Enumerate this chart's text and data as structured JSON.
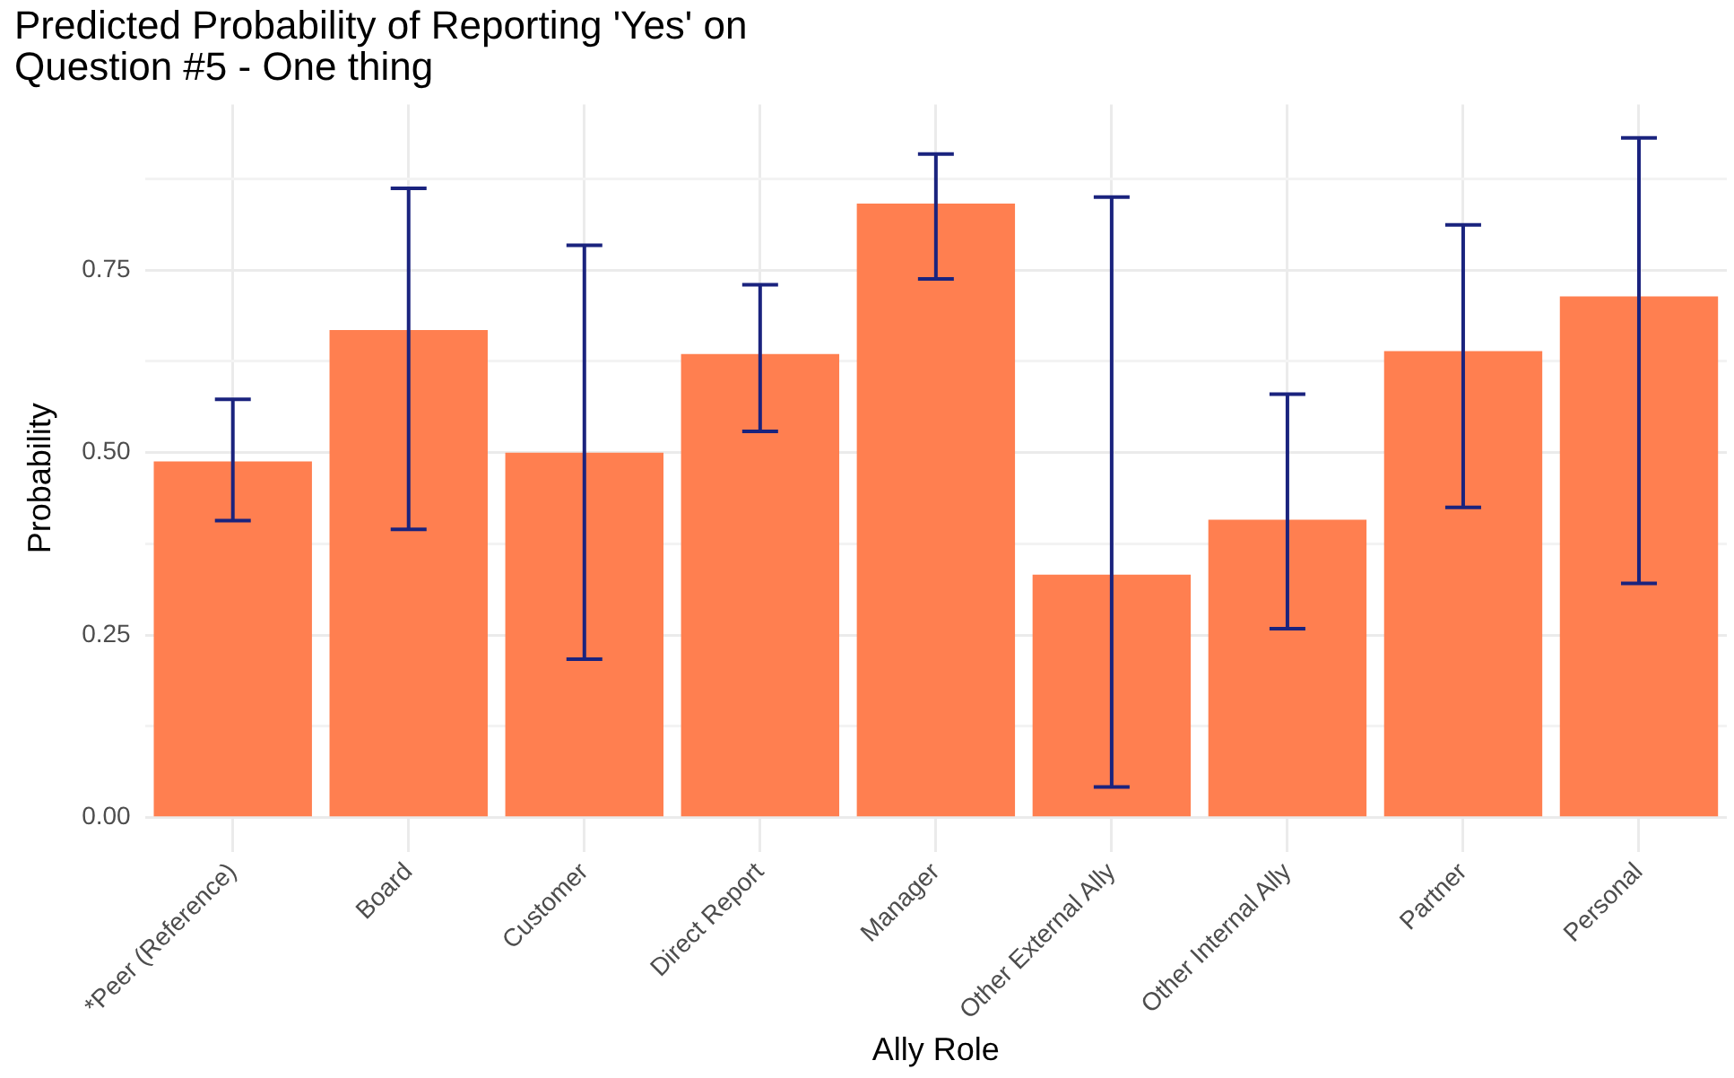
{
  "chart_data": {
    "type": "bar",
    "title": "Predicted Probability of Reporting 'Yes' on\nQuestion #5 - One thing",
    "xlabel": "Ally Role",
    "ylabel": "Probability",
    "categories": [
      "*Peer (Reference)",
      "Board",
      "Customer",
      "Direct Report",
      "Manager",
      "Other External Ally",
      "Other Internal Ally",
      "Partner",
      "Personal"
    ],
    "values": [
      0.488,
      0.668,
      0.5,
      0.635,
      0.841,
      0.333,
      0.408,
      0.639,
      0.714
    ],
    "errors": [
      [
        0.407,
        0.573
      ],
      [
        0.395,
        0.862
      ],
      [
        0.217,
        0.784
      ],
      [
        0.529,
        0.73
      ],
      [
        0.738,
        0.909
      ],
      [
        0.042,
        0.85
      ],
      [
        0.259,
        0.58
      ],
      [
        0.425,
        0.812
      ],
      [
        0.321,
        0.931
      ]
    ],
    "color": "#ff7f50",
    "ylim": [
      -0.047,
      0.977
    ],
    "yticks": [
      {
        "value": 0,
        "label": "0.00"
      },
      {
        "value": 0.125,
        "label": null
      },
      0.25,
      {
        "value": 0.375,
        "label": null
      },
      {
        "value": 0.5,
        "label": "0.50"
      },
      {
        "value": 0.625,
        "label": null
      },
      0.75,
      {
        "value": 0.875,
        "label": null
      }
    ],
    "grid": true
  }
}
